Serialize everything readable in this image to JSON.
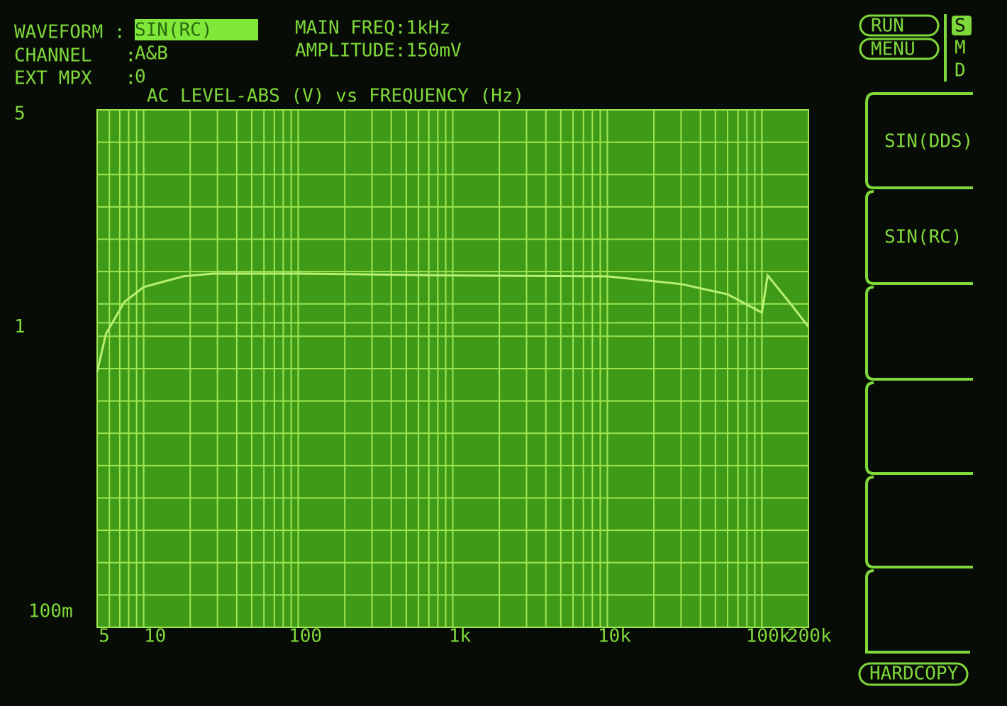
{
  "status": {
    "fields": [
      {
        "label": "WAVEFORM :",
        "value": "SIN(RC)"
      },
      {
        "label": "CHANNEL   :",
        "value": "A&B"
      },
      {
        "label": "EXT MPX   :",
        "value": "0"
      }
    ],
    "main_freq": "MAIN FREQ:1kHz",
    "amplitude": "AMPLITUDE:150mV"
  },
  "buttons": {
    "run": "RUN",
    "menu": "MENU",
    "modes": [
      "S",
      "M",
      "D"
    ],
    "softkeys": [
      "SIN(DDS)",
      "SIN(RC)"
    ],
    "hardcopy": "HARDCOPY"
  },
  "chart_data": {
    "type": "line",
    "title": "AC LEVEL-ABS (V) vs FREQUENCY (Hz)",
    "x": [
      5,
      5.7,
      7.5,
      10,
      18,
      28,
      100,
      1000,
      10000,
      30000,
      60000,
      100000,
      109000,
      150000,
      200000
    ],
    "values": [
      0.69,
      0.92,
      1.17,
      1.31,
      1.42,
      1.45,
      1.45,
      1.43,
      1.42,
      1.34,
      1.24,
      1.08,
      1.43,
      1.17,
      0.97
    ],
    "color": "#b8f070",
    "xlim": [
      5,
      200000
    ],
    "ylim": [
      0.1,
      5
    ],
    "xticks": [
      5,
      10,
      100,
      {
        "value": 1000,
        "label": "1k"
      },
      {
        "value": 10000,
        "label": "10k"
      },
      {
        "value": 100000,
        "label": "100k"
      },
      {
        "value": 200000,
        "label": "200k"
      }
    ],
    "yticks": [
      {
        "value": 0.1,
        "label": "100m"
      },
      1,
      5
    ],
    "log_x": true,
    "log_y": true,
    "grid": true
  }
}
